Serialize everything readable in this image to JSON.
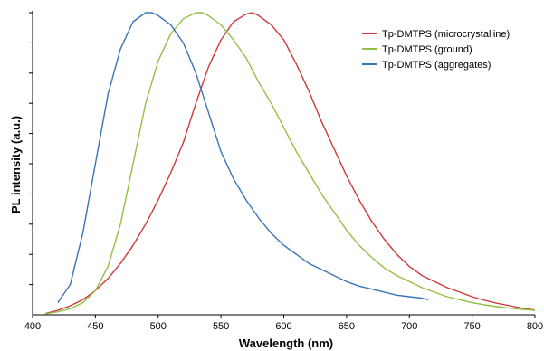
{
  "chart_data": {
    "type": "line",
    "xlabel": "Wavelength (nm)",
    "ylabel": "PL intensity (a.u.)",
    "xlim": [
      400,
      800
    ],
    "ylim": [
      0,
      1
    ],
    "xticks": [
      "400",
      "450",
      "500",
      "550",
      "600",
      "650",
      "700",
      "750",
      "800"
    ],
    "y_tick_count": 10,
    "y_tick_labels_shown": false,
    "grid": false,
    "legend_position": "top-right",
    "series": [
      {
        "name": "Tp-DMTPS (microcrystalline)",
        "color": "#d0393b",
        "x": [
          410,
          420,
          430,
          440,
          450,
          460,
          470,
          480,
          490,
          500,
          510,
          520,
          530,
          540,
          550,
          560,
          570,
          575,
          580,
          590,
          600,
          610,
          620,
          630,
          640,
          650,
          660,
          670,
          680,
          690,
          700,
          710,
          720,
          730,
          740,
          750,
          760,
          770,
          780,
          790,
          800
        ],
        "y": [
          0.004,
          0.015,
          0.03,
          0.05,
          0.08,
          0.12,
          0.17,
          0.23,
          0.3,
          0.38,
          0.47,
          0.57,
          0.7,
          0.82,
          0.91,
          0.97,
          0.995,
          1.0,
          0.99,
          0.96,
          0.91,
          0.83,
          0.74,
          0.64,
          0.55,
          0.46,
          0.38,
          0.31,
          0.25,
          0.2,
          0.16,
          0.13,
          0.11,
          0.09,
          0.075,
          0.06,
          0.048,
          0.038,
          0.03,
          0.022,
          0.016
        ]
      },
      {
        "name": "Tp-DMTPS (ground)",
        "color": "#92c046",
        "x": [
          410,
          420,
          430,
          440,
          450,
          460,
          470,
          480,
          490,
          500,
          510,
          520,
          530,
          535,
          540,
          550,
          560,
          570,
          580,
          590,
          600,
          610,
          620,
          630,
          640,
          650,
          660,
          670,
          680,
          690,
          700,
          710,
          720,
          730,
          740,
          750,
          760,
          770,
          780,
          790,
          800
        ],
        "y": [
          0.003,
          0.01,
          0.02,
          0.04,
          0.08,
          0.16,
          0.3,
          0.5,
          0.7,
          0.84,
          0.93,
          0.98,
          1.0,
          1.0,
          0.99,
          0.96,
          0.91,
          0.85,
          0.77,
          0.7,
          0.62,
          0.54,
          0.47,
          0.4,
          0.34,
          0.28,
          0.23,
          0.19,
          0.155,
          0.13,
          0.11,
          0.09,
          0.075,
          0.06,
          0.05,
          0.04,
          0.033,
          0.027,
          0.022,
          0.018,
          0.015
        ]
      },
      {
        "name": "Tp-DMTPS (aggregates)",
        "color": "#3a74b8",
        "x": [
          420,
          430,
          440,
          450,
          460,
          470,
          480,
          490,
          495,
          500,
          510,
          520,
          530,
          540,
          550,
          560,
          570,
          580,
          590,
          600,
          610,
          620,
          630,
          640,
          650,
          660,
          670,
          680,
          690,
          700,
          710,
          715
        ],
        "y": [
          0.04,
          0.1,
          0.27,
          0.5,
          0.73,
          0.88,
          0.97,
          1.0,
          1.0,
          0.99,
          0.96,
          0.9,
          0.8,
          0.67,
          0.54,
          0.45,
          0.38,
          0.32,
          0.27,
          0.23,
          0.2,
          0.17,
          0.15,
          0.13,
          0.11,
          0.095,
          0.085,
          0.075,
          0.065,
          0.06,
          0.055,
          0.05
        ]
      }
    ]
  }
}
